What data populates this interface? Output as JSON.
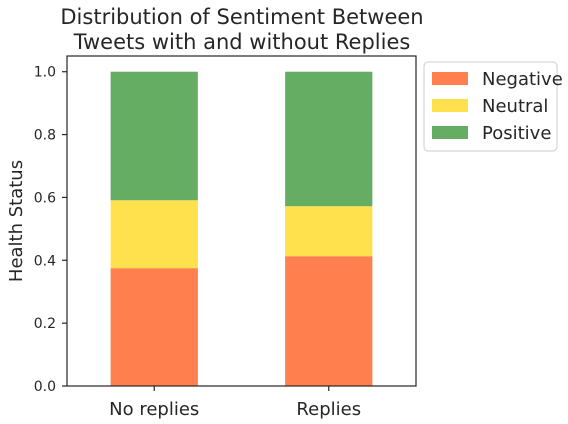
{
  "chart_data": {
    "type": "bar",
    "stacked": true,
    "title": "Distribution of Sentiment Between Tweets with and without Replies",
    "title_lines": [
      "Distribution of Sentiment Between",
      "Tweets with and without Replies"
    ],
    "xlabel": "",
    "ylabel": "Health Status",
    "ylim": [
      0,
      1.05
    ],
    "yticks": [
      "0.0",
      "0.2",
      "0.4",
      "0.6",
      "0.8",
      "1.0"
    ],
    "categories": [
      "No replies",
      "Replies"
    ],
    "series": [
      {
        "name": "Negative",
        "color": "#ff7f4f",
        "values": [
          0.375,
          0.413
        ]
      },
      {
        "name": "Neutral",
        "color": "#ffe14d",
        "values": [
          0.216,
          0.159
        ]
      },
      {
        "name": "Positive",
        "color": "#66ad64",
        "values": [
          0.409,
          0.428
        ]
      }
    ],
    "legend": {
      "placement": "outside-right-top"
    },
    "grid": false
  }
}
